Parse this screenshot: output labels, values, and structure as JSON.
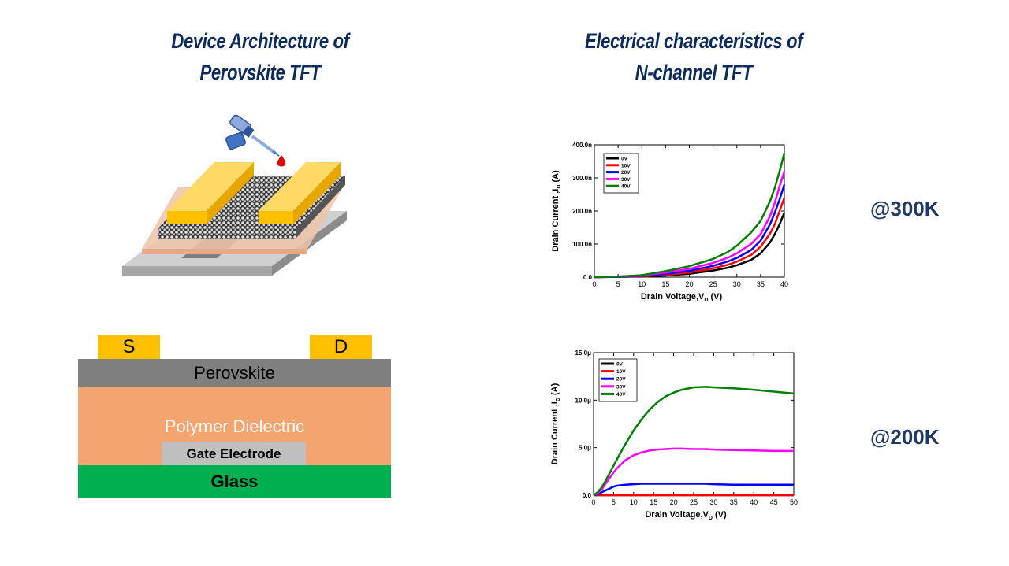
{
  "titles": {
    "left_line1": "Device Architecture of",
    "left_line2": "Perovskite TFT",
    "right_line1": "Electrical characteristics of",
    "right_line2": "N-channel TFT"
  },
  "temperatures": {
    "top": "@300K",
    "bottom": "@200K"
  },
  "cross_section": {
    "source": "S",
    "drain": "D",
    "perovskite": "Perovskite",
    "dielectric": "Polymer Dielectric",
    "gate": "Gate Electrode",
    "glass": "Glass"
  },
  "colors": {
    "gold": "#ffc000",
    "perovskite": "#7f7f7f",
    "dielectric": "#f4a46e",
    "gate": "#bfbfbf",
    "glass": "#00b050",
    "title": "#0d2a5c"
  },
  "chart_data": [
    {
      "type": "line",
      "title": "@300K",
      "xlabel": "Drain Voltage,V",
      "xlabel_sub": "D",
      "xlabel_tail": " (V)",
      "ylabel": "Drain Current ,I",
      "ylabel_sub": "D",
      "ylabel_tail": " (A)",
      "xlim": [
        0,
        40
      ],
      "ylim": [
        0,
        400
      ],
      "xticks": [
        0,
        5,
        10,
        15,
        20,
        25,
        30,
        35,
        40
      ],
      "yticks": [
        0,
        100,
        200,
        300,
        400
      ],
      "ytick_labels": [
        "0.0",
        "100.0n",
        "200.0n",
        "300.0n",
        "400.0n"
      ],
      "legend_position": "top-left",
      "x": [
        0,
        5,
        10,
        15,
        20,
        25,
        28,
        30,
        33,
        35,
        37,
        38,
        39,
        40
      ],
      "series": [
        {
          "name": "0V",
          "color": "#000000",
          "values": [
            0,
            1,
            2,
            5,
            10,
            20,
            28,
            36,
            52,
            72,
            105,
            130,
            160,
            195
          ]
        },
        {
          "name": "10V",
          "color": "#ff0000",
          "values": [
            0,
            1,
            3,
            7,
            14,
            27,
            37,
            47,
            67,
            92,
            132,
            160,
            200,
            240
          ]
        },
        {
          "name": "20V",
          "color": "#0000ff",
          "values": [
            0,
            1,
            4,
            10,
            19,
            34,
            47,
            58,
            82,
            110,
            160,
            195,
            235,
            280
          ]
        },
        {
          "name": "30V",
          "color": "#ff00ff",
          "values": [
            0,
            2,
            5,
            14,
            25,
            43,
            58,
            72,
            100,
            130,
            185,
            225,
            275,
            320
          ]
        },
        {
          "name": "40V",
          "color": "#008000",
          "values": [
            0,
            2,
            6,
            18,
            33,
            55,
            75,
            95,
            135,
            170,
            230,
            270,
            320,
            375
          ]
        }
      ]
    },
    {
      "type": "line",
      "title": "@200K",
      "xlabel": "Drain Voltage,V",
      "xlabel_sub": "D",
      "xlabel_tail": " (V)",
      "ylabel": "Drain Current ,I",
      "ylabel_sub": "D",
      "ylabel_tail": " (A)",
      "xlim": [
        0,
        50
      ],
      "ylim": [
        0,
        15
      ],
      "xticks": [
        0,
        5,
        10,
        15,
        20,
        25,
        30,
        35,
        40,
        45,
        50
      ],
      "yticks": [
        0,
        5,
        10,
        15
      ],
      "ytick_labels": [
        "0.0",
        "5.0μ",
        "10.0μ",
        "15.0μ"
      ],
      "legend_position": "top-left",
      "x": [
        0,
        1,
        2,
        3,
        4,
        5,
        6,
        8,
        10,
        12,
        14,
        16,
        18,
        20,
        22,
        25,
        28,
        30,
        35,
        40,
        45,
        50
      ],
      "series": [
        {
          "name": "0V",
          "color": "#000000",
          "values": [
            0,
            0,
            0,
            0,
            0,
            0,
            0,
            0,
            0,
            0,
            0,
            0,
            0,
            0,
            0,
            0,
            0,
            0,
            0,
            0,
            0,
            0
          ]
        },
        {
          "name": "10V",
          "color": "#ff0000",
          "values": [
            0,
            0,
            0,
            0,
            0,
            0,
            0,
            0,
            0,
            0,
            0,
            0,
            0,
            0,
            0,
            0,
            0,
            0,
            0,
            0,
            0,
            0
          ]
        },
        {
          "name": "20V",
          "color": "#0000ff",
          "values": [
            0,
            0.1,
            0.3,
            0.5,
            0.7,
            0.9,
            1.0,
            1.1,
            1.15,
            1.2,
            1.2,
            1.2,
            1.2,
            1.2,
            1.2,
            1.2,
            1.2,
            1.15,
            1.1,
            1.1,
            1.1,
            1.1
          ]
        },
        {
          "name": "30V",
          "color": "#ff00ff",
          "values": [
            0,
            0.2,
            0.6,
            1.2,
            1.8,
            2.4,
            2.9,
            3.7,
            4.2,
            4.5,
            4.7,
            4.8,
            4.85,
            4.9,
            4.9,
            4.85,
            4.85,
            4.8,
            4.75,
            4.7,
            4.65,
            4.65
          ]
        },
        {
          "name": "40V",
          "color": "#008000",
          "values": [
            0,
            0.3,
            0.8,
            1.5,
            2.3,
            3.1,
            3.9,
            5.4,
            6.8,
            8.0,
            9.0,
            9.8,
            10.4,
            10.8,
            11.1,
            11.35,
            11.4,
            11.35,
            11.25,
            11.1,
            10.9,
            10.7
          ]
        }
      ]
    }
  ]
}
